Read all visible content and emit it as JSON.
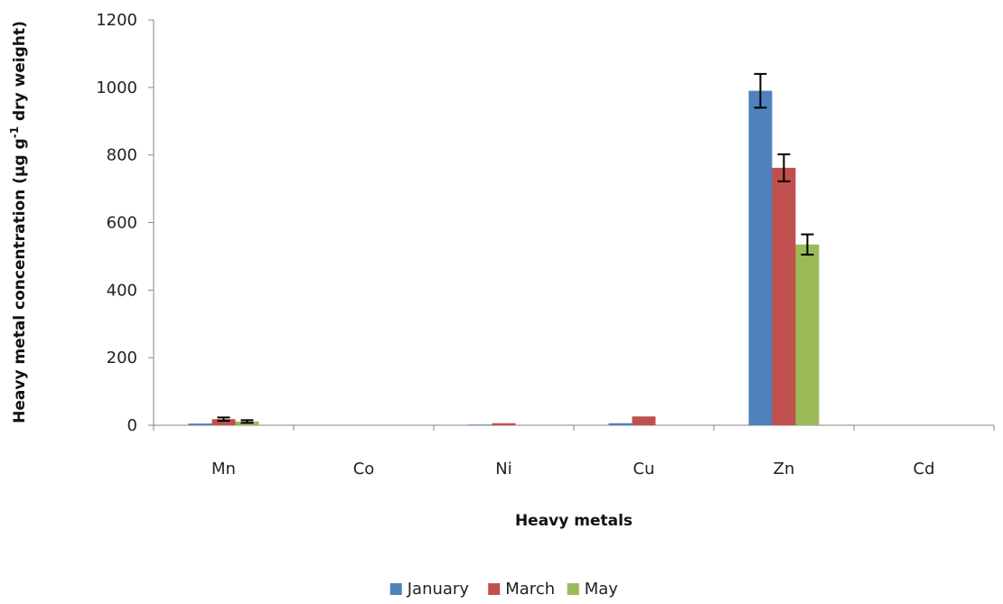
{
  "chart_data": {
    "type": "bar",
    "categories": [
      "Mn",
      "Co",
      "Ni",
      "Cu",
      "Zn",
      "Cd"
    ],
    "series": [
      {
        "name": "January",
        "color": "#4F81BD",
        "values": [
          5,
          0,
          2,
          6,
          990,
          0
        ],
        "errors": [
          0,
          0,
          0,
          0,
          50,
          0
        ]
      },
      {
        "name": "March",
        "color": "#C0504D",
        "values": [
          18,
          0,
          6,
          26,
          762,
          0
        ],
        "errors": [
          5,
          0,
          0,
          0,
          40,
          0
        ]
      },
      {
        "name": "May",
        "color": "#9BBB59",
        "values": [
          11,
          0,
          0,
          0,
          535,
          0
        ],
        "errors": [
          4,
          0,
          0,
          0,
          30,
          0
        ]
      }
    ],
    "yticks": [
      0,
      200,
      400,
      600,
      800,
      1000,
      1200
    ],
    "ylim": [
      0,
      1200
    ],
    "xlabel": "Heavy metals",
    "ylabel_pre": "Heavy metal concentration  (µg g",
    "ylabel_sup": "-1",
    "ylabel_post": " dry weight)",
    "legend_position": "bottom",
    "grid": false
  }
}
